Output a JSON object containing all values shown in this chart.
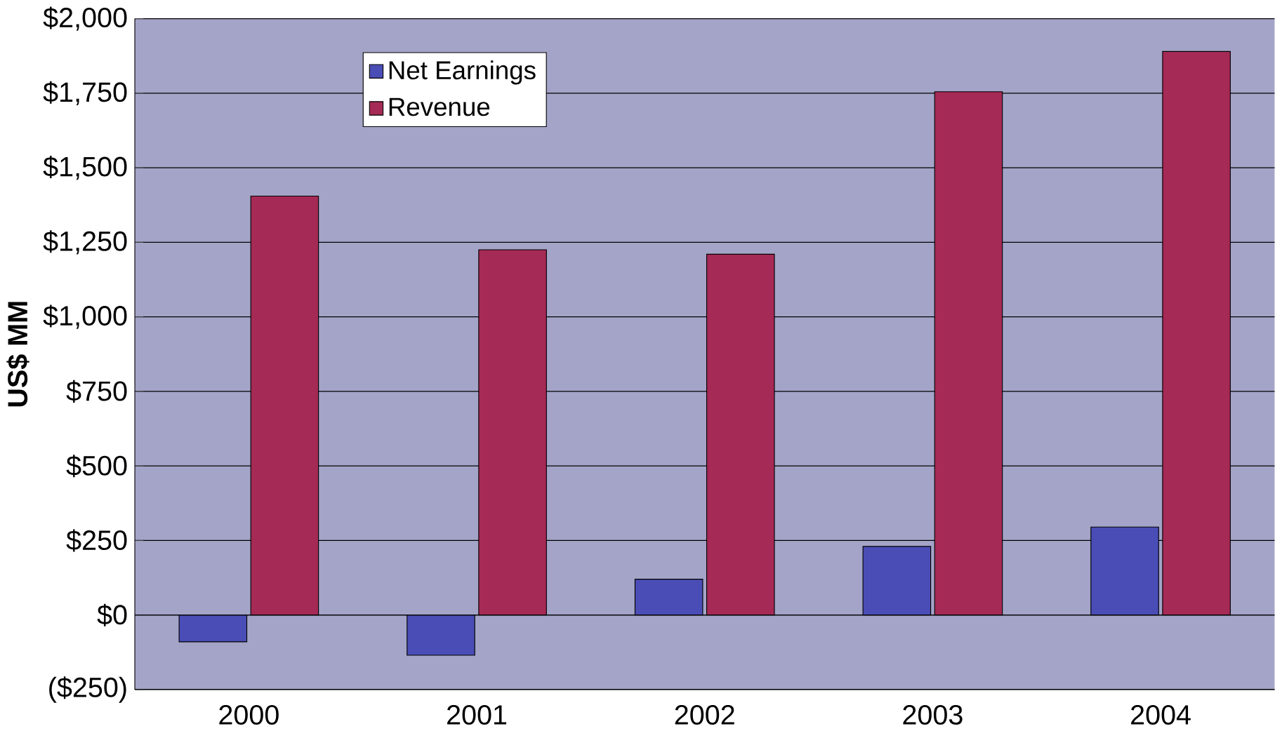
{
  "chart_data": {
    "type": "bar",
    "ylabel": "US$ MM",
    "categories": [
      "2000",
      "2001",
      "2002",
      "2003",
      "2004"
    ],
    "series": [
      {
        "name": "Net Earnings",
        "color": "#4a4db5",
        "values": [
          -90,
          -135,
          120,
          230,
          295
        ]
      },
      {
        "name": "Revenue",
        "color": "#a52a55",
        "values": [
          1405,
          1225,
          1210,
          1755,
          1890
        ]
      }
    ],
    "ylim": [
      -250,
      2000
    ],
    "yticks": [
      {
        "value": -250,
        "label": "($250)"
      },
      {
        "value": 0,
        "label": "$0"
      },
      {
        "value": 250,
        "label": "$250"
      },
      {
        "value": 500,
        "label": "$500"
      },
      {
        "value": 750,
        "label": "$750"
      },
      {
        "value": 1000,
        "label": "$1,000"
      },
      {
        "value": 1250,
        "label": "$1,250"
      },
      {
        "value": 1500,
        "label": "$1,500"
      },
      {
        "value": 1750,
        "label": "$1,750"
      },
      {
        "value": 2000,
        "label": "$2,000"
      }
    ],
    "grid": "y",
    "legend": "top left"
  }
}
